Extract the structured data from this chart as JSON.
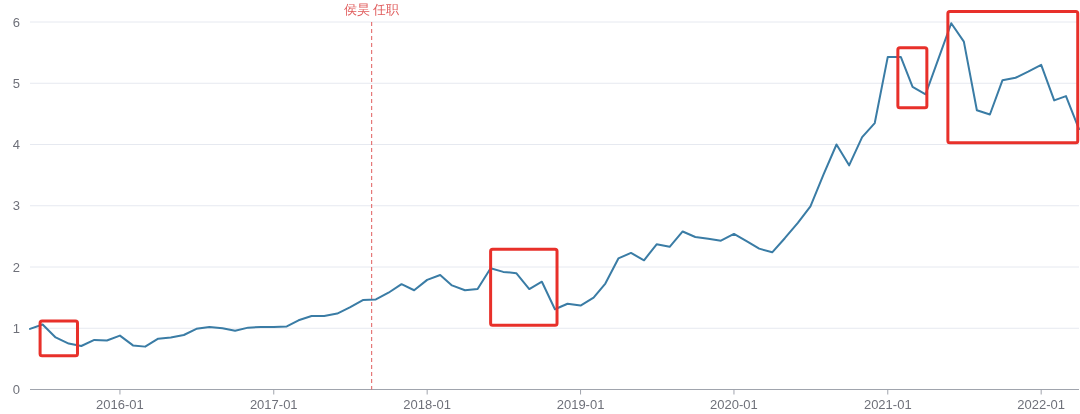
{
  "chart_data": {
    "type": "line",
    "x": [
      "2015-06",
      "2015-07",
      "2015-08",
      "2015-09",
      "2015-10",
      "2015-11",
      "2015-12",
      "2016-01",
      "2016-02",
      "2016-03",
      "2016-04",
      "2016-05",
      "2016-06",
      "2016-07",
      "2016-08",
      "2016-09",
      "2016-10",
      "2016-11",
      "2016-12",
      "2017-01",
      "2017-02",
      "2017-03",
      "2017-04",
      "2017-05",
      "2017-06",
      "2017-07",
      "2017-08",
      "2017-09",
      "2017-10",
      "2017-11",
      "2017-12",
      "2018-01",
      "2018-02",
      "2018-03",
      "2018-04",
      "2018-05",
      "2018-06",
      "2018-07",
      "2018-08",
      "2018-09",
      "2018-10",
      "2018-11",
      "2018-12",
      "2019-01",
      "2019-02",
      "2019-03",
      "2019-04",
      "2019-05",
      "2019-06",
      "2019-07",
      "2019-08",
      "2019-09",
      "2019-10",
      "2019-11",
      "2019-12",
      "2020-01",
      "2020-02",
      "2020-03",
      "2020-04",
      "2020-05",
      "2020-06",
      "2020-07",
      "2020-08",
      "2020-09",
      "2020-10",
      "2020-11",
      "2020-12",
      "2021-01",
      "2021-02",
      "2021-03",
      "2021-04",
      "2021-05",
      "2021-06",
      "2021-07",
      "2021-08",
      "2021-09",
      "2021-10",
      "2021-11",
      "2021-12",
      "2022-01",
      "2022-02",
      "2022-03",
      "2022-04"
    ],
    "values": [
      0.99,
      1.06,
      0.85,
      0.75,
      0.71,
      0.81,
      0.8,
      0.88,
      0.72,
      0.7,
      0.83,
      0.85,
      0.89,
      0.99,
      1.02,
      1.0,
      0.96,
      1.01,
      1.02,
      1.02,
      1.03,
      1.13,
      1.2,
      1.2,
      1.24,
      1.34,
      1.46,
      1.47,
      1.58,
      1.72,
      1.62,
      1.79,
      1.87,
      1.7,
      1.62,
      1.64,
      1.98,
      1.92,
      1.9,
      1.64,
      1.76,
      1.31,
      1.4,
      1.37,
      1.5,
      1.73,
      2.14,
      2.23,
      2.11,
      2.37,
      2.33,
      2.58,
      2.49,
      2.46,
      2.43,
      2.54,
      2.42,
      2.3,
      2.24,
      2.47,
      2.72,
      2.99,
      3.51,
      4.0,
      3.66,
      4.12,
      4.35,
      5.43,
      5.43,
      4.94,
      4.82,
      5.39,
      5.98,
      5.68,
      4.56,
      4.49,
      5.05,
      5.09,
      5.19,
      5.3,
      4.72,
      4.79,
      4.25
    ],
    "color": "#3a7ca5",
    "xlim": [
      "2015-06",
      "2022-04"
    ],
    "ylim": [
      0,
      6
    ],
    "xticks": [
      "2016-01",
      "2017-01",
      "2018-01",
      "2019-01",
      "2020-01",
      "2021-01",
      "2022-01"
    ],
    "yticks": [
      0,
      1,
      2,
      3,
      4,
      5,
      6
    ],
    "grid": "y",
    "ref_lines": [
      {
        "axis": "x",
        "value": "2017-08-22",
        "label": "侯昊 任职",
        "color": "#e05c5c",
        "line_style": "dashed"
      }
    ]
  }
}
